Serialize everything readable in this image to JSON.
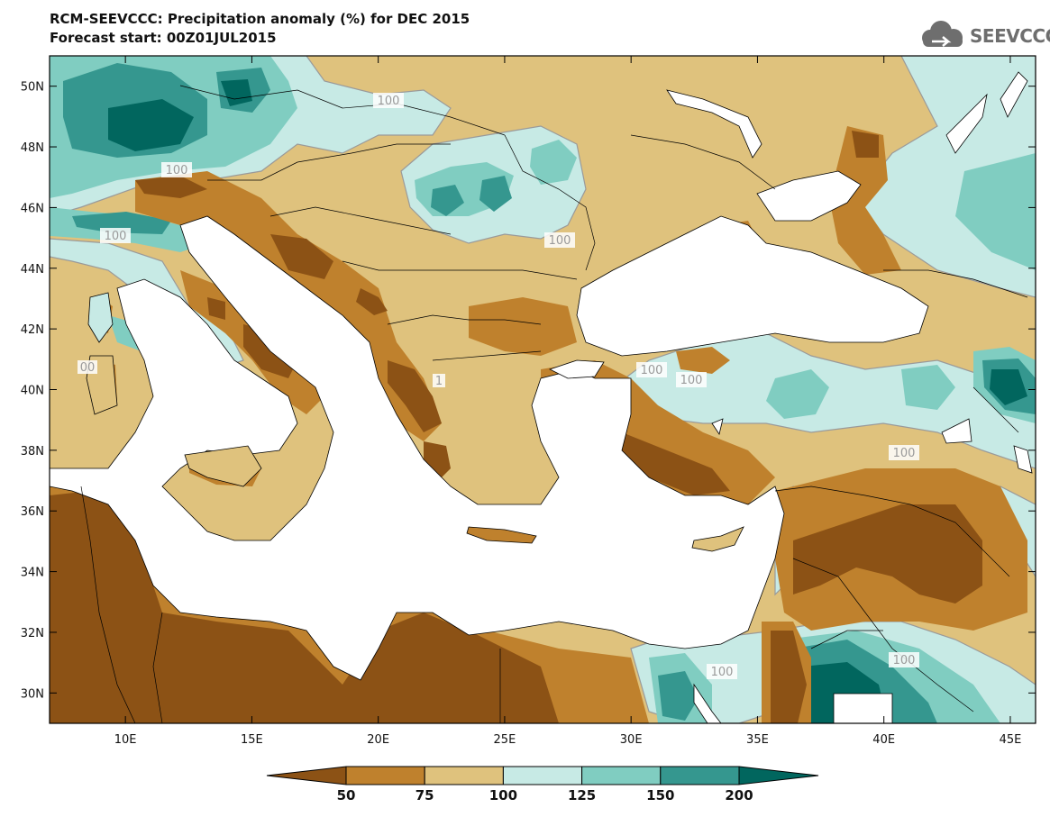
{
  "header": {
    "title_line1": "RCM-SEEVCCC: Precipitation anomaly (%) for DEC 2015",
    "title_line2": "Forecast start: 00Z01JUL2015"
  },
  "logo": {
    "text": "SEEVCCC",
    "icon": "cloud-icon"
  },
  "map": {
    "lon_range": [
      7,
      46
    ],
    "lat_range": [
      29,
      51
    ],
    "lon_ticks": [
      "10E",
      "15E",
      "20E",
      "25E",
      "30E",
      "35E",
      "40E",
      "45E"
    ],
    "lat_ticks": [
      "50N",
      "48N",
      "46N",
      "44N",
      "42N",
      "40N",
      "38N",
      "36N",
      "34N",
      "32N",
      "30N"
    ],
    "contour_labels": [
      "100",
      "100",
      "100",
      "100",
      "100",
      "100",
      "100",
      "100",
      "100",
      "100",
      "100",
      "00",
      "1"
    ],
    "colors": {
      "lt50": "#8c5215",
      "50_75": "#bf812d",
      "75_100": "#dfc27d",
      "100_125": "#c7eae5",
      "125_150": "#80cdc1",
      "150_200": "#35978f",
      "gt200": "#01665e",
      "sea": "#ffffff"
    }
  },
  "colorbar": {
    "labels": [
      "50",
      "75",
      "100",
      "125",
      "150",
      "200"
    ],
    "colors": [
      "#8c5215",
      "#bf812d",
      "#dfc27d",
      "#c7eae5",
      "#80cdc1",
      "#35978f",
      "#01665e"
    ]
  }
}
